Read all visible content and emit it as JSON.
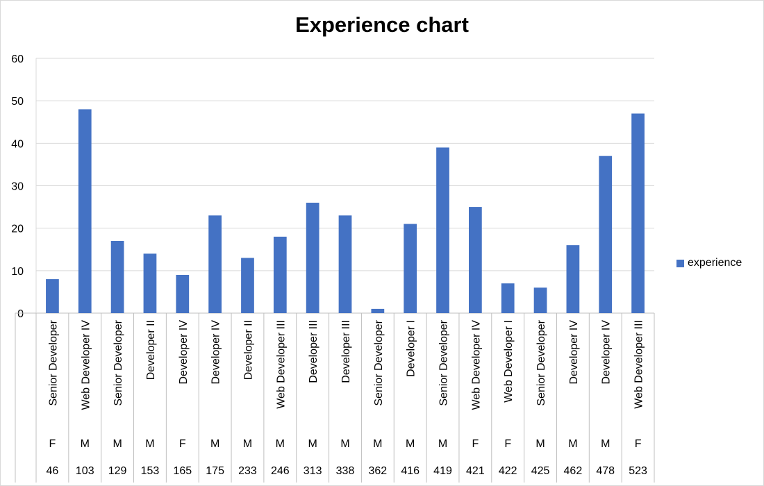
{
  "chart_data": {
    "type": "bar",
    "title": "Experience chart",
    "xlabel": "",
    "ylabel": "",
    "ylim": [
      0,
      60
    ],
    "yticks": [
      0,
      10,
      20,
      30,
      40,
      50,
      60
    ],
    "grid": true,
    "legend_position": "right",
    "categories": [
      {
        "title": "Senior Developer",
        "gender": "F",
        "id": "46"
      },
      {
        "title": "Web Developer IV",
        "gender": "M",
        "id": "103"
      },
      {
        "title": "Senior Developer",
        "gender": "M",
        "id": "129"
      },
      {
        "title": "Developer II",
        "gender": "M",
        "id": "153"
      },
      {
        "title": "Developer IV",
        "gender": "F",
        "id": "165"
      },
      {
        "title": "Developer IV",
        "gender": "M",
        "id": "175"
      },
      {
        "title": "Developer II",
        "gender": "M",
        "id": "233"
      },
      {
        "title": "Web Developer III",
        "gender": "M",
        "id": "246"
      },
      {
        "title": "Developer III",
        "gender": "M",
        "id": "313"
      },
      {
        "title": "Developer III",
        "gender": "M",
        "id": "338"
      },
      {
        "title": "Senior Developer",
        "gender": "M",
        "id": "362"
      },
      {
        "title": "Developer I",
        "gender": "M",
        "id": "416"
      },
      {
        "title": "Senior Developer",
        "gender": "M",
        "id": "419"
      },
      {
        "title": "Web Developer IV",
        "gender": "F",
        "id": "421"
      },
      {
        "title": "Web Developer I",
        "gender": "F",
        "id": "422"
      },
      {
        "title": "Senior Developer",
        "gender": "M",
        "id": "425"
      },
      {
        "title": "Developer IV",
        "gender": "M",
        "id": "462"
      },
      {
        "title": "Developer IV",
        "gender": "M",
        "id": "478"
      },
      {
        "title": "Web Developer III",
        "gender": "F",
        "id": "523"
      }
    ],
    "series": [
      {
        "name": "experience",
        "color": "#4472c4",
        "values": [
          8,
          48,
          17,
          14,
          9,
          23,
          13,
          18,
          26,
          23,
          1,
          21,
          39,
          25,
          7,
          6,
          16,
          37,
          47
        ]
      }
    ]
  }
}
